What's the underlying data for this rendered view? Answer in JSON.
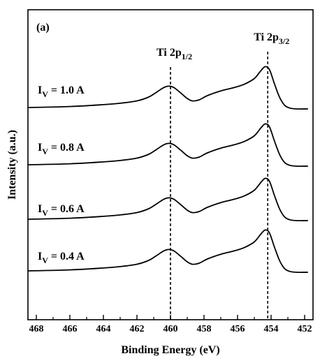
{
  "chart_data": {
    "type": "line",
    "panel_label": "(a)",
    "xlabel": "Binding Energy (eV)",
    "ylabel": "Intensity (a.u.)",
    "xlim": [
      468.5,
      451.5
    ],
    "x_reversed": true,
    "y_ticks_shown": false,
    "x_ticks": [
      468,
      466,
      464,
      462,
      460,
      458,
      456,
      454,
      452
    ],
    "reference_lines": [
      {
        "x": 460.0,
        "label_main": "Ti 2p",
        "label_sub": "1/2"
      },
      {
        "x": 454.2,
        "label_main": "Ti 2p",
        "label_sub": "3/2"
      }
    ],
    "series": [
      {
        "name_main": "I",
        "name_sub": "V",
        "name_rest": " = 1.0 A",
        "offset": 3
      },
      {
        "name_main": "I",
        "name_sub": "V",
        "name_rest": " = 0.8 A",
        "offset": 2
      },
      {
        "name_main": "I",
        "name_sub": "V",
        "name_rest": " = 0.6 A",
        "offset": 1
      },
      {
        "name_main": "I",
        "name_sub": "V",
        "name_rest": " = 0.4 A",
        "offset": 0
      }
    ],
    "profile": {
      "x": [
        468.5,
        466.0,
        464.0,
        463.0,
        462.0,
        461.3,
        460.8,
        460.4,
        460.1,
        459.8,
        459.4,
        459.0,
        458.7,
        458.3,
        457.8,
        457.0,
        456.2,
        455.6,
        455.0,
        454.6,
        454.35,
        454.1,
        453.8,
        453.5,
        453.2,
        452.9,
        452.5,
        451.8
      ],
      "y": [
        0.0,
        0.02,
        0.06,
        0.09,
        0.14,
        0.22,
        0.33,
        0.42,
        0.45,
        0.42,
        0.31,
        0.19,
        0.14,
        0.16,
        0.25,
        0.35,
        0.42,
        0.49,
        0.61,
        0.78,
        0.86,
        0.8,
        0.5,
        0.22,
        0.05,
        -0.01,
        -0.03,
        -0.03
      ]
    }
  }
}
